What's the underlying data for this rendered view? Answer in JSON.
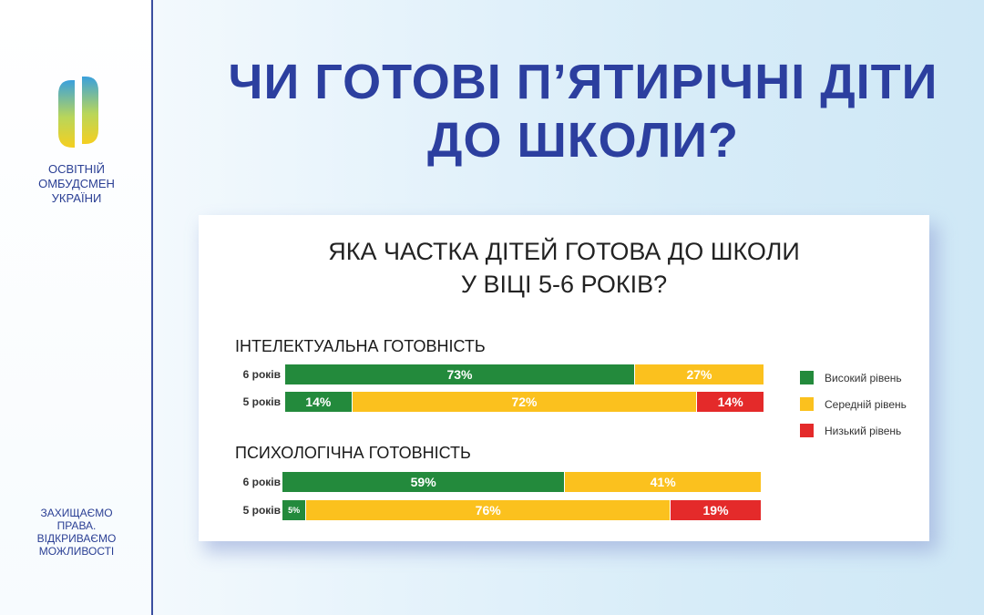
{
  "headline": {
    "line1": "ЧИ ГОТОВІ П’ЯТИРІЧНІ ДІТИ",
    "line2": "ДО ШКОЛИ?"
  },
  "sidebar": {
    "org_lines": [
      "ОСВІТНІЙ",
      "ОМБУДСМЕН",
      "УКРАЇНИ"
    ],
    "slogan_lines": [
      "ЗАХИЩАЄМО",
      "ПРАВА.",
      "ВІДКРИВАЄМО",
      "МОЖЛИВОСТІ"
    ],
    "logo_icon": "ombudsman-logo-icon"
  },
  "colors": {
    "high": "#238a3c",
    "medium": "#fbc11e",
    "low": "#e42a2a",
    "headline": "#2c3f9f"
  },
  "chart_data": {
    "type": "bar",
    "stacked": true,
    "orientation": "horizontal",
    "title_lines": [
      "ЯКА ЧАСТКА ДІТЕЙ ГОТОВА ДО ШКОЛИ",
      "У ВІЦІ 5-6 РОКІВ?"
    ],
    "legend": {
      "position": "right",
      "entries": [
        "Високий рівень",
        "Середній рівень",
        "Низький рівень"
      ]
    },
    "series_names": [
      "Високий рівень",
      "Середній рівень",
      "Низький рівень"
    ],
    "groups": [
      {
        "label": "ІНТЕЛЕКТУАЛЬНА ГОТОВНІСТЬ",
        "rows": [
          {
            "category": "6 років",
            "values": [
              73,
              27,
              0
            ],
            "labels": [
              "73%",
              "27%",
              ""
            ]
          },
          {
            "category": "5 років",
            "values": [
              14,
              72,
              14
            ],
            "labels": [
              "14%",
              "72%",
              "14%"
            ]
          }
        ]
      },
      {
        "label": "ПСИХОЛОГІЧНА ГОТОВНІСТЬ",
        "rows": [
          {
            "category": "6 років",
            "values": [
              59,
              41,
              0
            ],
            "labels": [
              "59%",
              "41%",
              ""
            ]
          },
          {
            "category": "5 років",
            "values": [
              5,
              76,
              19
            ],
            "labels": [
              "5%",
              "76%",
              "19%"
            ]
          }
        ]
      }
    ]
  }
}
